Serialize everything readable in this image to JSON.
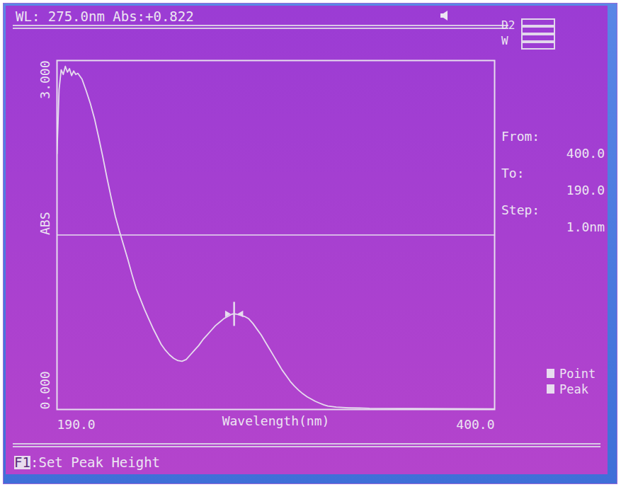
{
  "chart_data": {
    "type": "line",
    "title": "WL: 275.0nm Abs:+0.822",
    "x_label": "Wavelength(nm)",
    "y_label": "ABS",
    "x": [
      190,
      191,
      192,
      193,
      194,
      195,
      196,
      197,
      198,
      199,
      200,
      202,
      204,
      206,
      208,
      210,
      212,
      214,
      216,
      218,
      220,
      222,
      224,
      226,
      228,
      230,
      232,
      234,
      236,
      238,
      240,
      242,
      244,
      246,
      248,
      250,
      252,
      254,
      256,
      258,
      260,
      262,
      264,
      266,
      268,
      270,
      272,
      274,
      275,
      276,
      278,
      280,
      282,
      284,
      286,
      288,
      290,
      292,
      294,
      296,
      298,
      300,
      302,
      304,
      306,
      308,
      310,
      312,
      314,
      316,
      318,
      320,
      324,
      330,
      340,
      360,
      380,
      400
    ],
    "values": [
      2.2,
      2.75,
      2.92,
      2.88,
      2.95,
      2.9,
      2.93,
      2.87,
      2.91,
      2.88,
      2.89,
      2.84,
      2.74,
      2.63,
      2.5,
      2.34,
      2.17,
      1.99,
      1.82,
      1.66,
      1.53,
      1.41,
      1.29,
      1.16,
      1.04,
      0.95,
      0.86,
      0.78,
      0.7,
      0.63,
      0.56,
      0.51,
      0.47,
      0.44,
      0.42,
      0.415,
      0.43,
      0.47,
      0.51,
      0.55,
      0.6,
      0.64,
      0.68,
      0.72,
      0.75,
      0.78,
      0.8,
      0.82,
      0.822,
      0.82,
      0.81,
      0.8,
      0.78,
      0.74,
      0.69,
      0.64,
      0.58,
      0.52,
      0.46,
      0.4,
      0.34,
      0.29,
      0.24,
      0.2,
      0.165,
      0.135,
      0.11,
      0.09,
      0.07,
      0.055,
      0.04,
      0.03,
      0.02,
      0.015,
      0.01,
      0.008,
      0.006,
      0.005
    ],
    "color": "#e6dcee",
    "xlim": [
      190,
      400
    ],
    "ylim": [
      0,
      3
    ],
    "xticks": [
      {
        "value": 190,
        "label": "190.0"
      },
      {
        "value": 400,
        "label": "400.0"
      }
    ],
    "yticks": [
      {
        "value": 0,
        "label": "0.000"
      },
      {
        "value": 3,
        "label": "3.000"
      }
    ],
    "reference_line": 1.5,
    "cursor": {
      "x": 275,
      "y": 0.822
    },
    "grid": false
  },
  "side_panel": {
    "lamps": [
      "D2",
      "W"
    ],
    "scan": [
      {
        "label": "From:",
        "value": "400.0"
      },
      {
        "label": "To:",
        "value": "190.0"
      },
      {
        "label": "Step:",
        "value": "1.0nm"
      }
    ],
    "keys": [
      "Point",
      "Peak"
    ]
  },
  "footer": {
    "key": "F1",
    "text": ":Set Peak Height"
  }
}
